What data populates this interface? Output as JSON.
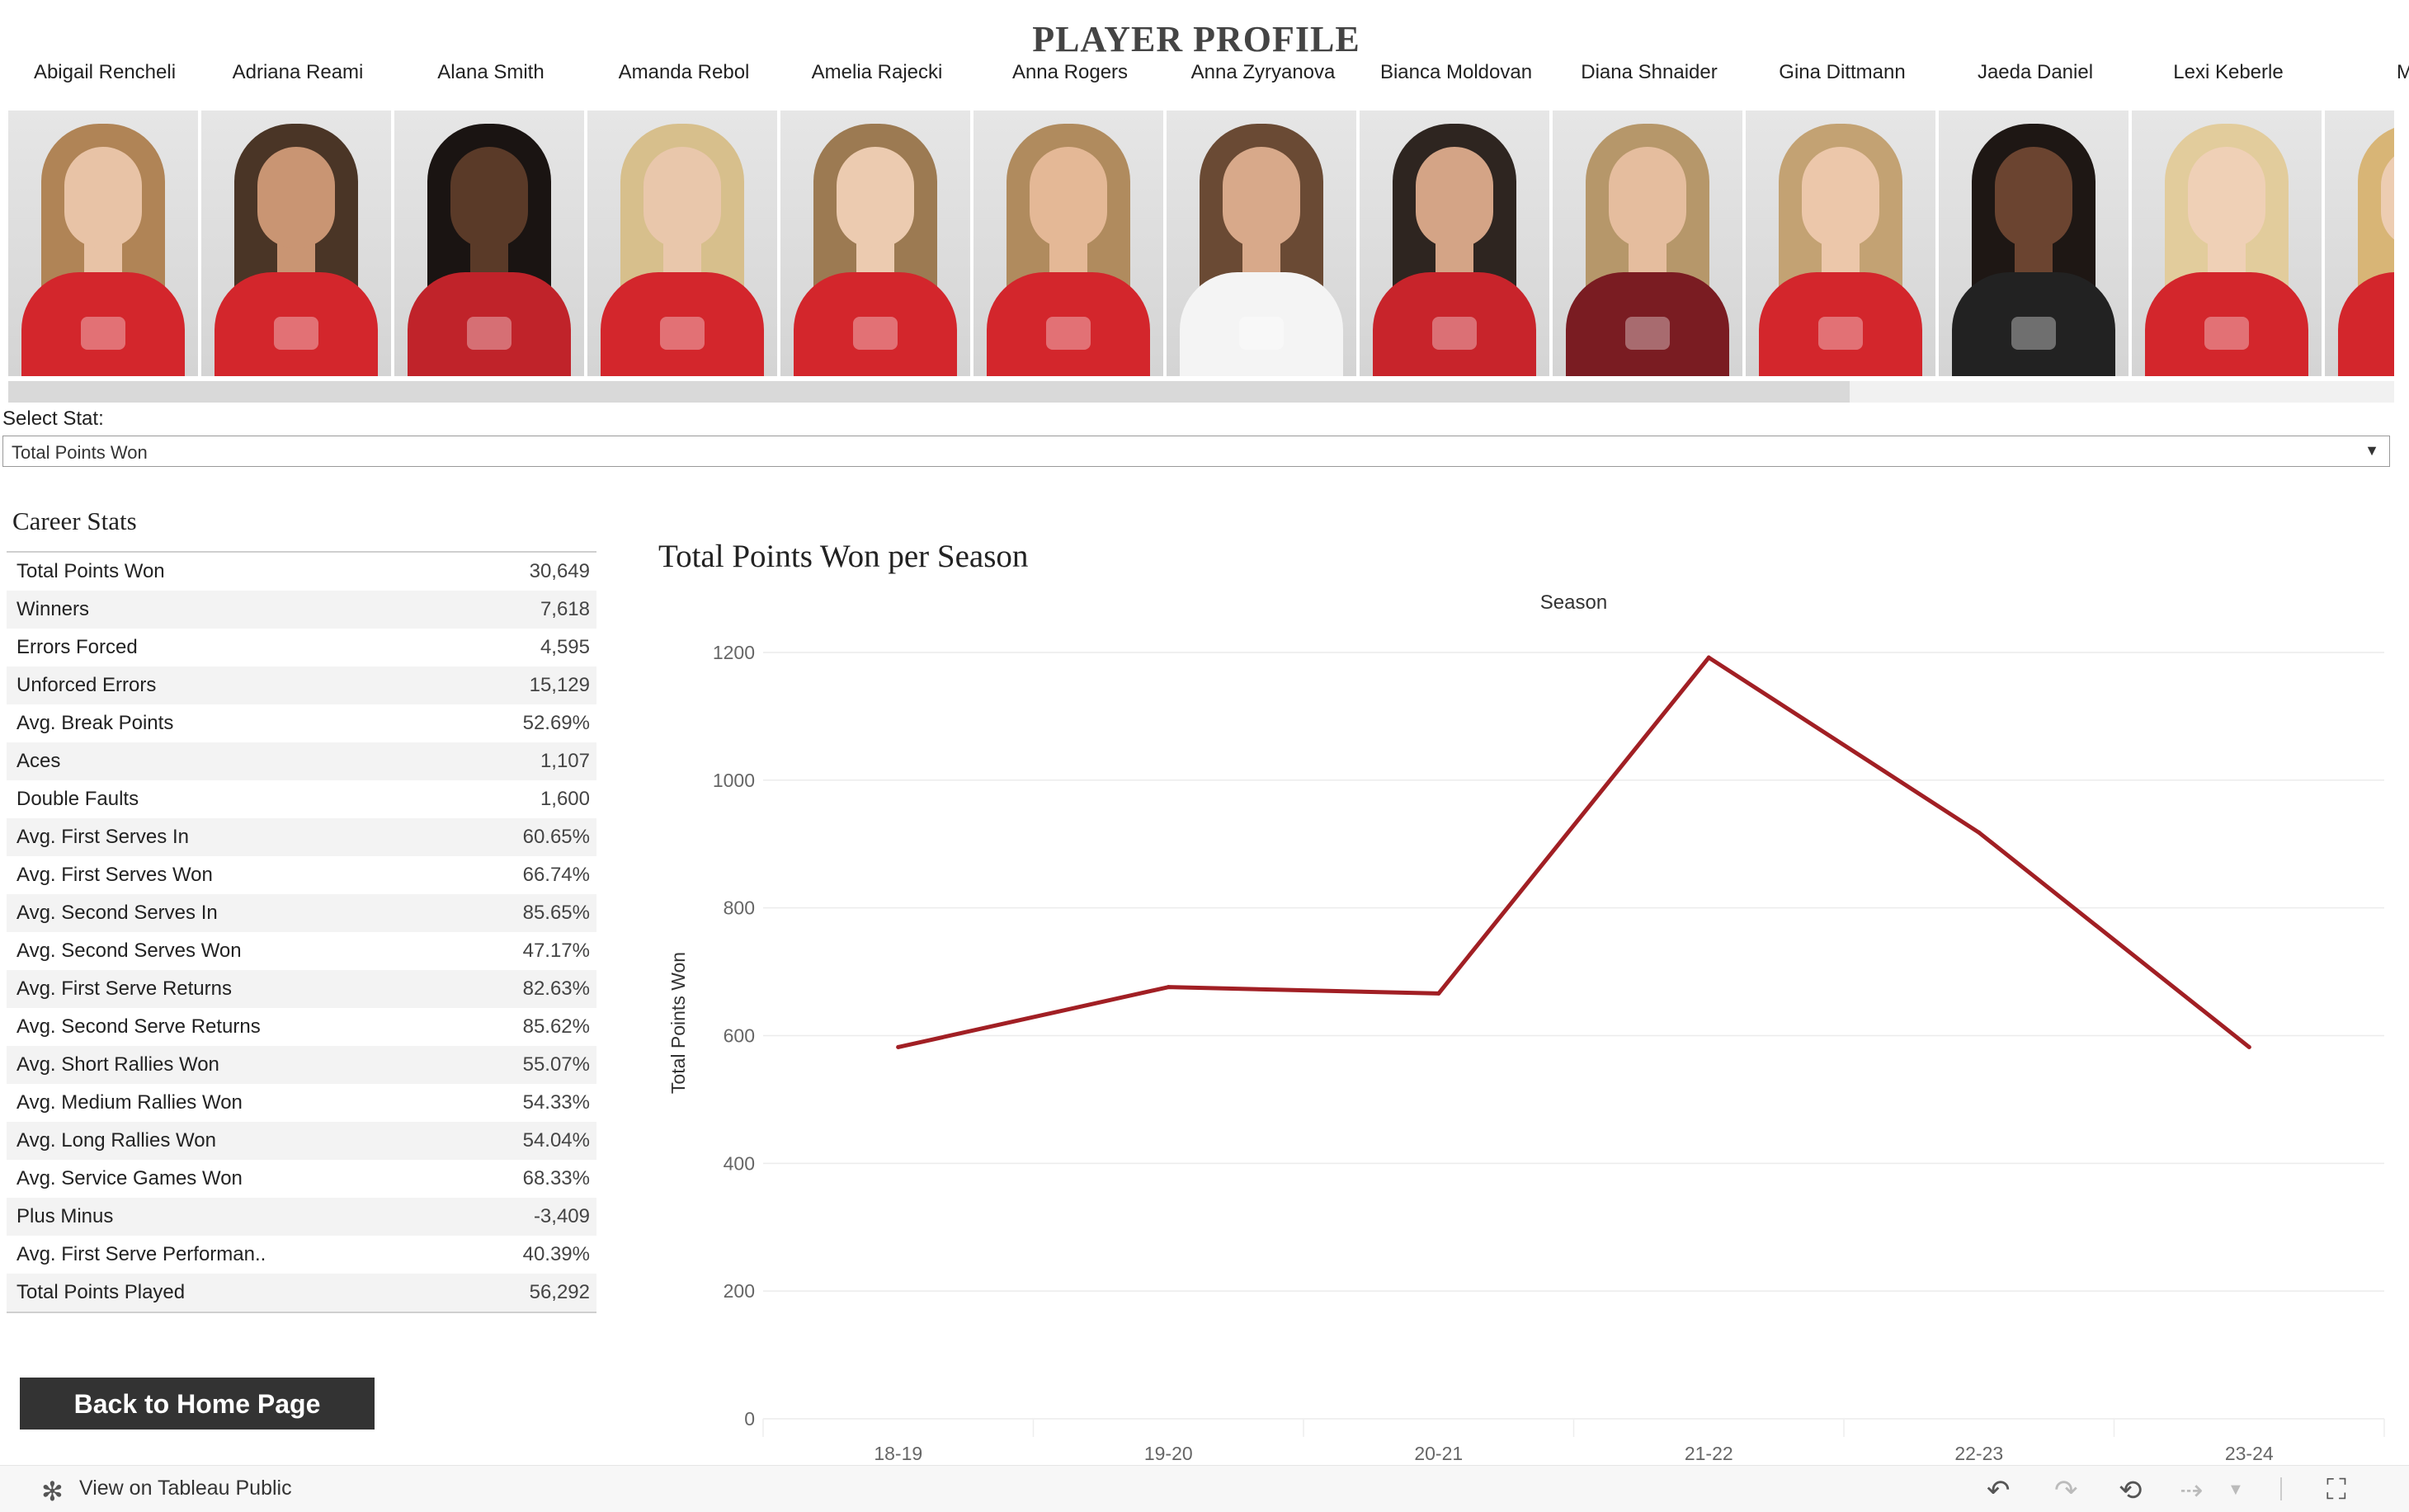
{
  "header": {
    "title": "PLAYER PROFILE"
  },
  "players": [
    {
      "name": "Abigail Rencheli",
      "skin": "#e8c3a6",
      "hair": "#b08456",
      "shirt": "#d3262c"
    },
    {
      "name": "Adriana Reami",
      "skin": "#c99573",
      "hair": "#4a3526",
      "shirt": "#d3262c"
    },
    {
      "name": "Alana Smith",
      "skin": "#5a3a28",
      "hair": "#1a1412",
      "shirt": "#c0232a"
    },
    {
      "name": "Amanda Rebol",
      "skin": "#e9c7ab",
      "hair": "#d7bf8c",
      "shirt": "#d3262c"
    },
    {
      "name": "Amelia Rajecki",
      "skin": "#eccbb0",
      "hair": "#9c7a52",
      "shirt": "#d3262c"
    },
    {
      "name": "Anna Rogers",
      "skin": "#e4b896",
      "hair": "#b08b5e",
      "shirt": "#d3262c"
    },
    {
      "name": "Anna Zyryanova",
      "skin": "#d8a98a",
      "hair": "#6a4a34",
      "shirt": "#f4f4f4"
    },
    {
      "name": "Bianca Moldovan",
      "skin": "#d4a486",
      "hair": "#2e2520",
      "shirt": "#c8242b"
    },
    {
      "name": "Diana Shnaider",
      "skin": "#e5bd9e",
      "hair": "#b6976a",
      "shirt": "#7a1c22"
    },
    {
      "name": "Gina Dittmann",
      "skin": "#ecc7aa",
      "hair": "#c3a273",
      "shirt": "#d3262c"
    },
    {
      "name": "Jaeda Daniel",
      "skin": "#6b4430",
      "hair": "#1e1714",
      "shirt": "#222222"
    },
    {
      "name": "Lexi Keberle",
      "skin": "#efd0b6",
      "hair": "#e2cc9c",
      "shirt": "#d3262c"
    },
    {
      "name": "Madd",
      "skin": "#edcdb2",
      "hair": "#d8b576",
      "shirt": "#d3262c"
    }
  ],
  "filter": {
    "label": "Select Stat:",
    "selected": "Total Points Won"
  },
  "career": {
    "title": "Career Stats",
    "rows": [
      {
        "name": "Total Points Won",
        "value": "30,649"
      },
      {
        "name": "Winners",
        "value": "7,618"
      },
      {
        "name": "Errors Forced",
        "value": "4,595"
      },
      {
        "name": "Unforced Errors",
        "value": "15,129"
      },
      {
        "name": "Avg. Break Points",
        "value": "52.69%"
      },
      {
        "name": "Aces",
        "value": "1,107"
      },
      {
        "name": "Double Faults",
        "value": "1,600"
      },
      {
        "name": "Avg. First Serves In",
        "value": "60.65%"
      },
      {
        "name": "Avg. First Serves Won",
        "value": "66.74%"
      },
      {
        "name": "Avg. Second Serves In",
        "value": "85.65%"
      },
      {
        "name": "Avg. Second Serves Won",
        "value": "47.17%"
      },
      {
        "name": "Avg. First Serve Returns",
        "value": "82.63%"
      },
      {
        "name": "Avg. Second Serve Returns",
        "value": "85.62%"
      },
      {
        "name": "Avg. Short Rallies Won",
        "value": "55.07%"
      },
      {
        "name": "Avg. Medium Rallies Won",
        "value": "54.33%"
      },
      {
        "name": "Avg. Long Rallies Won",
        "value": "54.04%"
      },
      {
        "name": "Avg. Service Games Won",
        "value": "68.33%"
      },
      {
        "name": "Plus Minus",
        "value": "-3,409"
      },
      {
        "name": "Avg. First Serve Performan..",
        "value": "40.39%"
      },
      {
        "name": "Total Points Played",
        "value": "56,292"
      }
    ]
  },
  "back_button": {
    "label": "Back to Home Page"
  },
  "chart_data": {
    "type": "line",
    "title": "Total Points Won per Season",
    "column_header": "Season",
    "ylabel": "Total Points Won",
    "categories": [
      "18-19",
      "19-20",
      "20-21",
      "21-22",
      "22-23",
      "23-24"
    ],
    "values": [
      582,
      676,
      666,
      1192,
      918,
      582
    ],
    "yticks": [
      0,
      200,
      400,
      600,
      800,
      1000,
      1200
    ],
    "ylim": [
      0,
      1240
    ],
    "grid": true,
    "line_color": "#a11f24"
  },
  "footer": {
    "link": "View on Tableau Public",
    "tableau_icon": "tableau-icon",
    "undo_icon": "undo-icon",
    "redo_icon": "redo-icon",
    "revert_icon": "revert-icon",
    "refresh_icon": "refresh-icon",
    "dropdown_icon": "chevron-down-icon",
    "fullscreen_icon": "fullscreen-icon"
  }
}
